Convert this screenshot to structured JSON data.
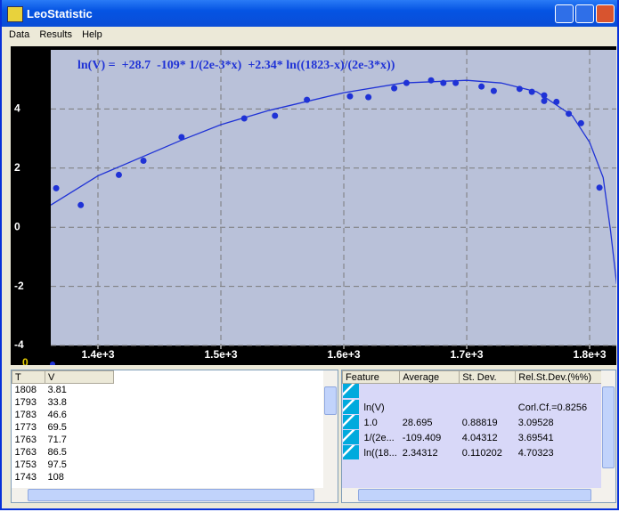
{
  "window": {
    "title": "LeoStatistic"
  },
  "menu": [
    "Data",
    "Results",
    "Help"
  ],
  "chart_data": {
    "type": "scatter",
    "title": "ln(V) =  +28.7  -109* 1/(2e-3*x)  +2.34* ln((1823-x)/(2e-3*x))",
    "marker_label": "0",
    "background": "#b9c1d9",
    "grid": true,
    "xlim": [
      1361.6,
      1821.7
    ],
    "ylim": [
      -4,
      6
    ],
    "xticks": [
      {
        "value": 1400,
        "label": "1.4e+3"
      },
      {
        "value": 1500,
        "label": "1.5e+3"
      },
      {
        "value": 1600,
        "label": "1.6e+3"
      },
      {
        "value": 1700,
        "label": "1.7e+3"
      },
      {
        "value": 1800,
        "label": "1.8e+3"
      }
    ],
    "yticks": [
      4,
      2,
      0,
      -2,
      -4
    ],
    "series": [
      {
        "type": "scatter",
        "color": "#1f32d6",
        "x": [
          1366,
          1386,
          1417,
          1437,
          1468,
          1519,
          1544,
          1570,
          1605,
          1620,
          1641,
          1651,
          1671,
          1681,
          1691,
          1712,
          1722,
          1743,
          1753,
          1763,
          1763,
          1773,
          1783,
          1793,
          1808
        ],
        "values": [
          1.32,
          0.75,
          1.77,
          2.25,
          3.05,
          3.68,
          3.77,
          4.31,
          4.43,
          4.4,
          4.7,
          4.88,
          4.97,
          4.88,
          4.88,
          4.76,
          4.61,
          4.68,
          4.58,
          4.46,
          4.27,
          4.24,
          3.84,
          3.52,
          1.34
        ]
      },
      {
        "type": "line",
        "color": "#1f32d6",
        "x": [
          1361.6,
          1400,
          1467,
          1500,
          1539,
          1600,
          1648,
          1700,
          1728,
          1757,
          1786,
          1800,
          1811,
          1817,
          1822
        ],
        "values": [
          0.75,
          1.74,
          2.93,
          3.47,
          3.95,
          4.55,
          4.88,
          4.97,
          4.88,
          4.58,
          3.77,
          2.87,
          1.68,
          -0.12,
          -1.92
        ]
      }
    ]
  },
  "data_table": {
    "columns": [
      "T",
      "V"
    ],
    "rows": [
      [
        "1808",
        "3.81"
      ],
      [
        "1793",
        "33.8"
      ],
      [
        "1783",
        "46.6"
      ],
      [
        "1773",
        "69.5"
      ],
      [
        "1763",
        "71.7"
      ],
      [
        "1763",
        "86.5"
      ],
      [
        "1753",
        "97.5"
      ],
      [
        "1743",
        "108"
      ]
    ]
  },
  "results_table": {
    "columns": [
      "Feature",
      "Average",
      "St. Dev.",
      "Rel.St.Dev.(%%)"
    ],
    "rows": [
      [
        "ln(V)",
        "",
        "",
        "Corl.Cf.=0.8256"
      ],
      [
        "1.0",
        "28.695",
        "0.88819",
        "3.09528"
      ],
      [
        "1/(2e...",
        "-109.409",
        "4.04312",
        "3.69541"
      ],
      [
        "ln((18...",
        "2.34312",
        "0.110202",
        "4.70323"
      ]
    ]
  }
}
